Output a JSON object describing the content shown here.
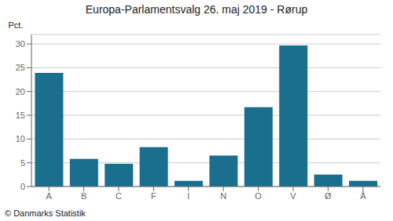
{
  "chart_data": {
    "type": "bar",
    "title": "Europa-Parlamentsvalg 26. maj 2019 - Rørup",
    "categories": [
      "A",
      "B",
      "C",
      "F",
      "I",
      "N",
      "O",
      "V",
      "Ø",
      "Å"
    ],
    "values": [
      23.9,
      5.8,
      4.8,
      8.3,
      1.2,
      6.5,
      16.7,
      29.7,
      2.5,
      1.2
    ],
    "color": "#1a6e8e",
    "ylabel": "Pct.",
    "ylim": [
      0,
      32
    ],
    "yticks": [
      0,
      5,
      10,
      15,
      20,
      25,
      30
    ],
    "grid": true,
    "annotations": [
      "© Danmarks Statistik"
    ]
  }
}
